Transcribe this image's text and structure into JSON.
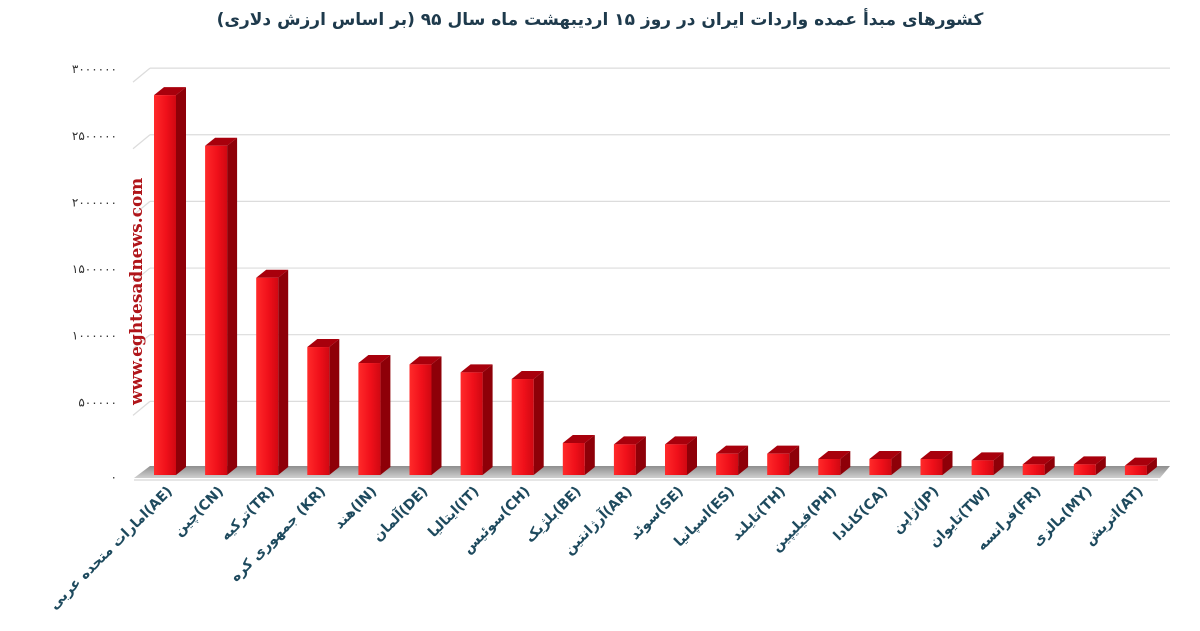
{
  "chart_data": {
    "type": "bar",
    "title": "کشورهای مبدأ عمده واردات ایران در روز ۱۵ اردیبهشت ماه سال ۹۵ (بر اساس ارزش دلاری)",
    "xlabel": "",
    "ylabel": "",
    "ylim": [
      0,
      3000000
    ],
    "grid": true,
    "legend": "none",
    "style": "3d-column",
    "bar_color": "#e8101a",
    "yticks": [
      0,
      500000,
      1000000,
      1500000,
      2000000,
      2500000,
      3000000
    ],
    "ytick_labels": [
      "۰",
      "۵۰۰۰۰۰",
      "۱۰۰۰۰۰۰",
      "۱۵۰۰۰۰۰",
      "۲۰۰۰۰۰۰",
      "۲۵۰۰۰۰۰",
      "۳۰۰۰۰۰۰"
    ],
    "categories": [
      "امارات متحده عربی(AE)",
      "چین(CN)",
      "ترکیه(TR)",
      "جمهوری کره (KR)",
      "هند(IN)",
      "آلمان(DE)",
      "ایتالیا(IT)",
      "سوئیس(CH)",
      "بلژیک(BE)",
      "آرژانتین(AR)",
      "سوئد(SE)",
      "اسپانیا(ES)",
      "تایلند(TH)",
      "فیلیپین(PH)",
      "کانادا(CA)",
      "ژاپن(JP)",
      "تایوان(TW)",
      "فرانسه(FR)",
      "مالزی(MY)",
      "اتریش(AT)"
    ],
    "values": [
      2850000,
      2470000,
      1480000,
      960000,
      840000,
      830000,
      770000,
      720000,
      240000,
      230000,
      230000,
      160000,
      160000,
      120000,
      120000,
      120000,
      110000,
      80000,
      80000,
      70000
    ]
  },
  "watermark": "www.eghtesadnews.com"
}
